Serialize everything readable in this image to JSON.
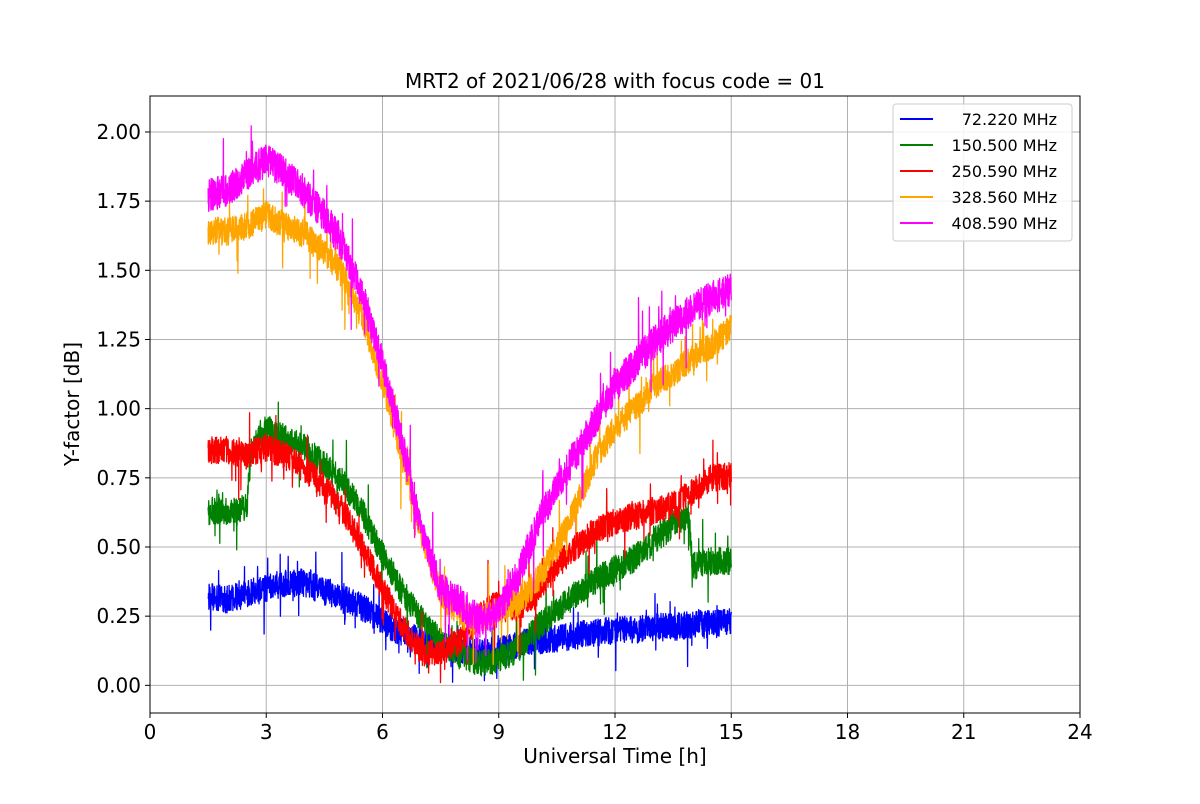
{
  "chart_data": {
    "type": "line",
    "title": "MRT2 of 2021/06/28 with focus code = 01",
    "xlabel": "Universal Time [h]",
    "ylabel": "Y-factor [dB]",
    "xlim": [
      0,
      24
    ],
    "ylim": [
      -0.1,
      2.13
    ],
    "xticks": [
      0,
      3,
      6,
      9,
      12,
      15,
      18,
      21,
      24
    ],
    "yticks": [
      0.0,
      0.25,
      0.5,
      0.75,
      1.0,
      1.25,
      1.5,
      1.75,
      2.0
    ],
    "ytick_labels": [
      "0.00",
      "0.25",
      "0.50",
      "0.75",
      "1.00",
      "1.25",
      "1.50",
      "1.75",
      "2.00"
    ],
    "grid": true,
    "legend_position": "top-right",
    "series": [
      {
        "name": "72.220 MHz",
        "color": "#0000ff",
        "noise": 0.05,
        "spikes": 0.06,
        "x": [
          1.5,
          2.0,
          2.5,
          3.0,
          3.5,
          4.0,
          4.5,
          5.0,
          5.5,
          6.0,
          6.5,
          7.0,
          7.5,
          8.0,
          8.5,
          9.0,
          9.5,
          10.0,
          10.5,
          11.0,
          11.5,
          12.0,
          12.5,
          13.0,
          13.5,
          14.0,
          14.5,
          15.0
        ],
        "y": [
          0.32,
          0.31,
          0.33,
          0.35,
          0.37,
          0.37,
          0.34,
          0.32,
          0.28,
          0.23,
          0.19,
          0.16,
          0.14,
          0.13,
          0.12,
          0.13,
          0.15,
          0.16,
          0.17,
          0.18,
          0.19,
          0.2,
          0.2,
          0.21,
          0.21,
          0.22,
          0.22,
          0.23
        ]
      },
      {
        "name": "150.500 MHz",
        "color": "#008000",
        "noise": 0.05,
        "spikes": 0.07,
        "x": [
          1.5,
          2.0,
          2.5,
          2.6,
          3.0,
          3.5,
          4.0,
          4.5,
          5.0,
          5.5,
          6.0,
          6.5,
          7.0,
          7.5,
          8.0,
          8.5,
          9.0,
          9.5,
          10.0,
          10.5,
          11.0,
          11.5,
          12.0,
          12.5,
          13.0,
          13.5,
          13.9,
          14.0,
          14.5,
          15.0
        ],
        "y": [
          0.63,
          0.63,
          0.64,
          0.84,
          0.93,
          0.89,
          0.86,
          0.8,
          0.73,
          0.62,
          0.47,
          0.34,
          0.24,
          0.16,
          0.11,
          0.08,
          0.09,
          0.13,
          0.21,
          0.27,
          0.33,
          0.38,
          0.42,
          0.46,
          0.52,
          0.58,
          0.62,
          0.43,
          0.45,
          0.45
        ]
      },
      {
        "name": "250.590 MHz",
        "color": "#ff0000",
        "noise": 0.05,
        "spikes": 0.07,
        "x": [
          1.5,
          2.0,
          2.5,
          3.0,
          3.5,
          4.0,
          4.5,
          5.0,
          5.5,
          6.0,
          6.5,
          7.0,
          7.5,
          8.0,
          8.5,
          9.0,
          9.5,
          10.0,
          10.5,
          11.0,
          11.5,
          12.0,
          12.5,
          13.0,
          13.5,
          14.0,
          14.5,
          15.0
        ],
        "y": [
          0.85,
          0.85,
          0.83,
          0.86,
          0.83,
          0.78,
          0.72,
          0.63,
          0.5,
          0.35,
          0.22,
          0.12,
          0.11,
          0.16,
          0.25,
          0.3,
          0.28,
          0.34,
          0.43,
          0.5,
          0.56,
          0.59,
          0.61,
          0.63,
          0.65,
          0.7,
          0.75,
          0.76
        ]
      },
      {
        "name": "328.560 MHz",
        "color": "#ffa500",
        "noise": 0.05,
        "spikes": 0.08,
        "x": [
          1.5,
          2.0,
          2.5,
          3.0,
          3.5,
          4.0,
          4.5,
          5.0,
          5.5,
          6.0,
          6.5,
          7.0,
          7.5,
          8.0,
          8.5,
          9.0,
          9.5,
          10.0,
          10.5,
          11.0,
          11.5,
          12.0,
          12.5,
          13.0,
          13.5,
          14.0,
          14.5,
          15.0
        ],
        "y": [
          1.64,
          1.64,
          1.66,
          1.7,
          1.66,
          1.63,
          1.57,
          1.48,
          1.32,
          1.1,
          0.83,
          0.55,
          0.33,
          0.25,
          0.24,
          0.27,
          0.3,
          0.38,
          0.5,
          0.65,
          0.82,
          0.93,
          1.0,
          1.08,
          1.13,
          1.18,
          1.23,
          1.29
        ]
      },
      {
        "name": "408.590 MHz",
        "color": "#ff00ff",
        "noise": 0.06,
        "spikes": 0.1,
        "x": [
          1.5,
          2.0,
          2.5,
          3.0,
          3.5,
          4.0,
          4.5,
          5.0,
          5.5,
          6.0,
          6.5,
          7.0,
          7.5,
          8.0,
          8.5,
          9.0,
          9.5,
          10.0,
          10.5,
          11.0,
          11.5,
          12.0,
          12.5,
          13.0,
          13.5,
          14.0,
          14.5,
          15.0
        ],
        "y": [
          1.77,
          1.79,
          1.85,
          1.9,
          1.85,
          1.78,
          1.7,
          1.58,
          1.4,
          1.17,
          0.88,
          0.56,
          0.35,
          0.3,
          0.23,
          0.27,
          0.4,
          0.58,
          0.72,
          0.84,
          0.96,
          1.08,
          1.16,
          1.24,
          1.3,
          1.36,
          1.4,
          1.43
        ]
      }
    ]
  }
}
